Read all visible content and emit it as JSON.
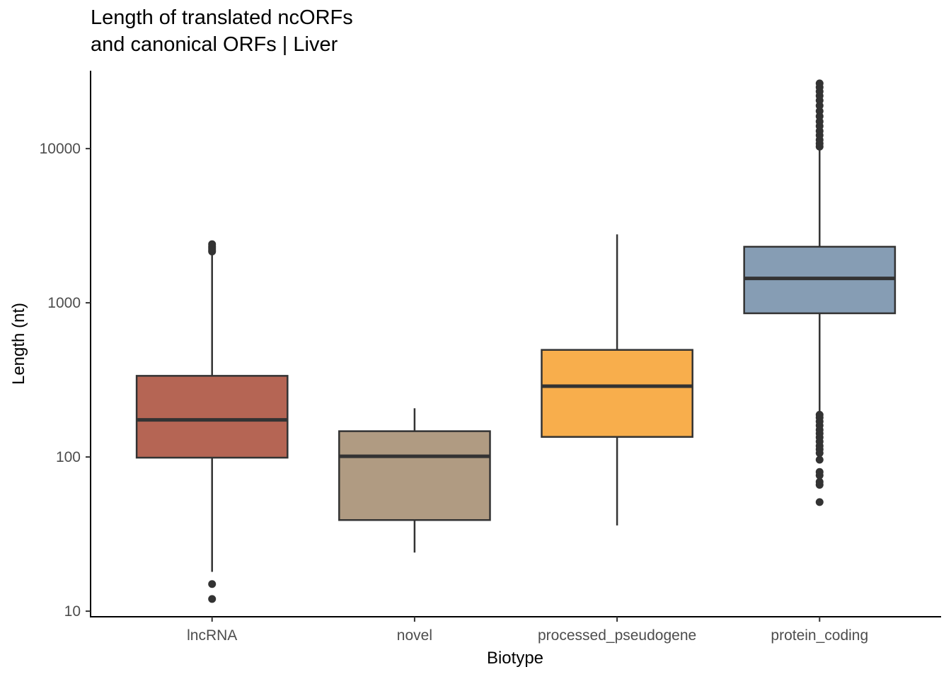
{
  "chart_data": {
    "type": "box",
    "title_lines": [
      "Length of translated ncORFs",
      "and canonical ORFs | Liver"
    ],
    "xlabel": "Biotype",
    "ylabel": "Length (nt)",
    "y_scale": "log10",
    "ylim": [
      9.2,
      32000
    ],
    "y_ticks": [
      10,
      100,
      1000,
      10000
    ],
    "y_tick_labels": [
      "10",
      "100",
      "1000",
      "10000"
    ],
    "grid": false,
    "categories": [
      "lncRNA",
      "novel",
      "processed_pseudogene",
      "protein_coding"
    ],
    "colors": [
      "#b56554",
      "#b09b82",
      "#f8ae4c",
      "#869db4"
    ],
    "boxes": [
      {
        "category": "lncRNA",
        "whisker_low": 18,
        "q1": 99,
        "median": 174,
        "q3": 336,
        "whisker_high": 2100,
        "outliers": [
          12,
          15,
          2150,
          2200,
          2260,
          2320,
          2400
        ]
      },
      {
        "category": "novel",
        "whisker_low": 24,
        "q1": 39,
        "median": 101,
        "q3": 147,
        "whisker_high": 207,
        "outliers": []
      },
      {
        "category": "processed_pseudogene",
        "whisker_low": 36,
        "q1": 135,
        "median": 288,
        "q3": 495,
        "whisker_high": 2780,
        "outliers": []
      },
      {
        "category": "protein_coding",
        "whisker_low": 192,
        "q1": 855,
        "median": 1440,
        "q3": 2310,
        "whisker_high": 10000,
        "outliers": [
          51,
          66,
          69,
          76,
          80,
          96,
          106,
          112,
          118,
          126,
          134,
          142,
          150,
          160,
          170,
          180,
          188,
          10300,
          10800,
          11400,
          12200,
          13000,
          14000,
          15000,
          16200,
          17500,
          19000,
          20500,
          22000,
          23500,
          25000,
          26500
        ]
      }
    ]
  }
}
